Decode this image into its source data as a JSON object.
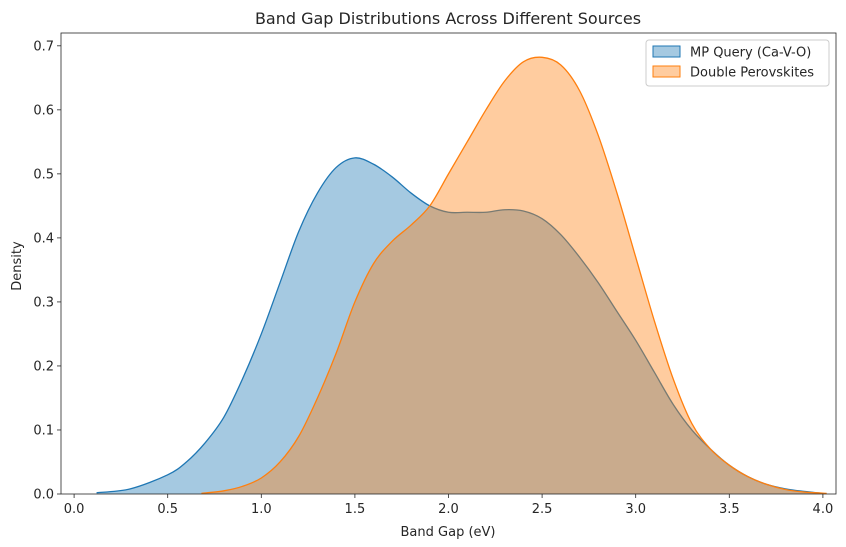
{
  "chart_data": {
    "type": "area",
    "title": "Band Gap Distributions Across Different Sources",
    "xlabel": "Band Gap (eV)",
    "ylabel": "Density",
    "xlim": [
      -0.07,
      4.07
    ],
    "ylim": [
      0.0,
      0.72
    ],
    "xticks": [
      0.0,
      0.5,
      1.0,
      1.5,
      2.0,
      2.5,
      3.0,
      3.5,
      4.0
    ],
    "xtick_labels": [
      "0.0",
      "0.5",
      "1.0",
      "1.5",
      "2.0",
      "2.5",
      "3.0",
      "3.5",
      "4.0"
    ],
    "yticks": [
      0.0,
      0.1,
      0.2,
      0.3,
      0.4,
      0.5,
      0.6,
      0.7
    ],
    "ytick_labels": [
      "0.0",
      "0.1",
      "0.2",
      "0.3",
      "0.4",
      "0.5",
      "0.6",
      "0.7"
    ],
    "grid": false,
    "legend_position": "top-right",
    "series": [
      {
        "name": "MP Query (Ca-V-O)",
        "color": "#1f77b4",
        "fill_opacity": 0.4,
        "x": [
          0.12,
          0.3,
          0.5,
          0.6,
          0.7,
          0.8,
          0.9,
          1.0,
          1.1,
          1.2,
          1.3,
          1.4,
          1.5,
          1.6,
          1.7,
          1.8,
          1.9,
          2.0,
          2.1,
          2.2,
          2.3,
          2.4,
          2.5,
          2.6,
          2.7,
          2.8,
          2.9,
          3.0,
          3.1,
          3.2,
          3.3,
          3.4,
          3.5,
          3.6,
          3.7,
          3.8,
          3.9,
          4.0
        ],
        "y": [
          0.002,
          0.008,
          0.03,
          0.05,
          0.08,
          0.12,
          0.18,
          0.25,
          0.33,
          0.41,
          0.47,
          0.51,
          0.525,
          0.515,
          0.495,
          0.47,
          0.45,
          0.44,
          0.44,
          0.44,
          0.444,
          0.442,
          0.43,
          0.405,
          0.37,
          0.33,
          0.285,
          0.24,
          0.19,
          0.14,
          0.1,
          0.07,
          0.045,
          0.027,
          0.015,
          0.008,
          0.004,
          0.001
        ]
      },
      {
        "name": "Double Perovskites",
        "color": "#ff7f0e",
        "fill_opacity": 0.4,
        "x": [
          0.68,
          0.8,
          0.9,
          1.0,
          1.1,
          1.2,
          1.3,
          1.4,
          1.5,
          1.6,
          1.7,
          1.8,
          1.9,
          2.0,
          2.1,
          2.2,
          2.3,
          2.4,
          2.5,
          2.6,
          2.7,
          2.8,
          2.9,
          3.0,
          3.1,
          3.2,
          3.3,
          3.4,
          3.5,
          3.6,
          3.7,
          3.8,
          3.9,
          4.02
        ],
        "y": [
          0.001,
          0.005,
          0.012,
          0.025,
          0.05,
          0.09,
          0.15,
          0.22,
          0.3,
          0.36,
          0.395,
          0.42,
          0.45,
          0.5,
          0.55,
          0.6,
          0.645,
          0.675,
          0.682,
          0.67,
          0.63,
          0.56,
          0.47,
          0.37,
          0.27,
          0.18,
          0.11,
          0.07,
          0.045,
          0.027,
          0.015,
          0.007,
          0.003,
          0.001
        ]
      }
    ]
  }
}
